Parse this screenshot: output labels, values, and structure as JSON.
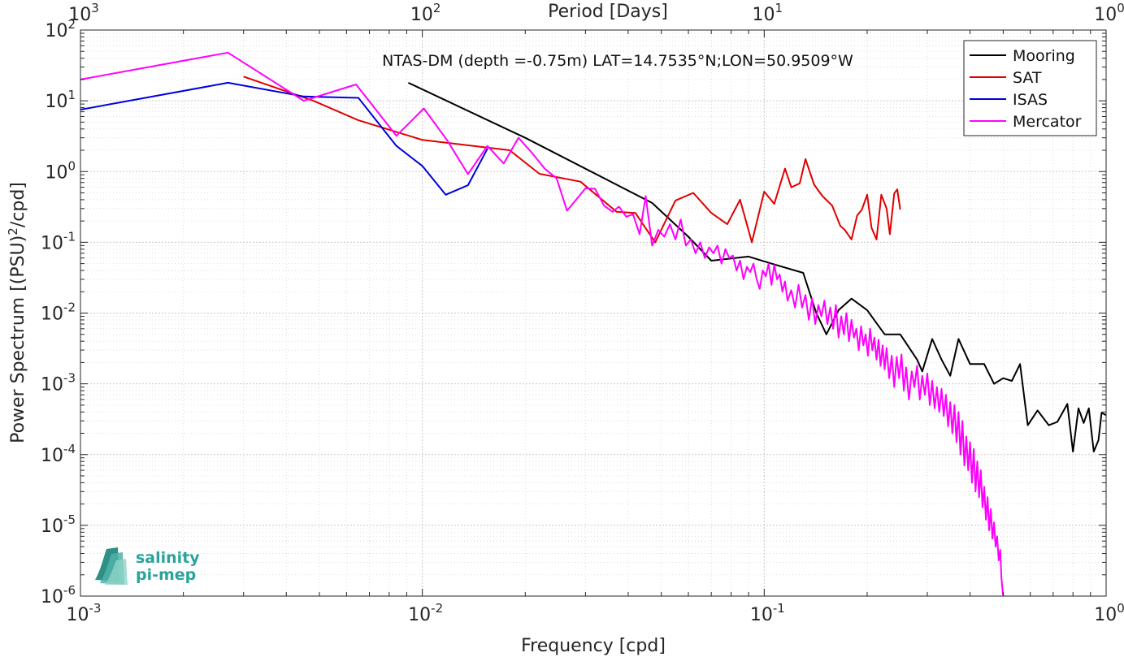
{
  "chart_data": {
    "type": "line",
    "title": "NTAS-DM (depth =-0.75m) LAT=14.7535°N;LON=50.9509°W",
    "xlabel": "Frequency [cpd]",
    "ylabel": "Power Spectrum [(PSU)^2/cpd]",
    "ylabel_parts": {
      "main": "Power Spectrum [(PSU)",
      "sup": "2",
      "tail": "/cpd]"
    },
    "top_xlabel": "Period [Days]",
    "x_scale": "log",
    "y_scale": "log",
    "xlim": [
      0.001,
      1
    ],
    "ylim": [
      1e-06,
      100
    ],
    "grid": true,
    "minor_grid": true,
    "legend_position": "top-right",
    "x_ticks": [
      {
        "value": 0.001,
        "base": "10",
        "exp": "-3"
      },
      {
        "value": 0.01,
        "base": "10",
        "exp": "-2"
      },
      {
        "value": 0.1,
        "base": "10",
        "exp": "-1"
      },
      {
        "value": 1,
        "base": "10",
        "exp": "0"
      }
    ],
    "top_ticks": [
      {
        "value": 0.001,
        "base": "10",
        "exp": "3"
      },
      {
        "value": 0.01,
        "base": "10",
        "exp": "2"
      },
      {
        "value": 0.1,
        "base": "10",
        "exp": "1"
      },
      {
        "value": 1,
        "base": "10",
        "exp": "0"
      }
    ],
    "y_ticks": [
      {
        "value": 1e-06,
        "base": "10",
        "exp": "-6"
      },
      {
        "value": 1e-05,
        "base": "10",
        "exp": "-5"
      },
      {
        "value": 0.0001,
        "base": "10",
        "exp": "-4"
      },
      {
        "value": 0.001,
        "base": "10",
        "exp": "-3"
      },
      {
        "value": 0.01,
        "base": "10",
        "exp": "-2"
      },
      {
        "value": 0.1,
        "base": "10",
        "exp": "-1"
      },
      {
        "value": 1,
        "base": "10",
        "exp": "0"
      },
      {
        "value": 10,
        "base": "10",
        "exp": "1"
      },
      {
        "value": 100,
        "base": "10",
        "exp": "2"
      }
    ],
    "series": [
      {
        "name": "Mooring",
        "color": "#000000",
        "points": [
          [
            0.0091,
            18
          ],
          [
            0.02,
            3.0
          ],
          [
            0.047,
            0.36
          ],
          [
            0.06,
            0.12
          ],
          [
            0.07,
            0.055
          ],
          [
            0.09,
            0.063
          ],
          [
            0.105,
            0.05
          ],
          [
            0.13,
            0.037
          ],
          [
            0.142,
            0.01
          ],
          [
            0.152,
            0.005
          ],
          [
            0.165,
            0.011
          ],
          [
            0.18,
            0.016
          ],
          [
            0.2,
            0.011
          ],
          [
            0.225,
            0.005
          ],
          [
            0.25,
            0.005
          ],
          [
            0.28,
            0.0022
          ],
          [
            0.29,
            0.0015
          ],
          [
            0.31,
            0.0043
          ],
          [
            0.33,
            0.0022
          ],
          [
            0.35,
            0.0013
          ],
          [
            0.37,
            0.0043
          ],
          [
            0.4,
            0.0019
          ],
          [
            0.44,
            0.0019
          ],
          [
            0.47,
            0.001
          ],
          [
            0.5,
            0.0012
          ],
          [
            0.53,
            0.0011
          ],
          [
            0.56,
            0.0019
          ],
          [
            0.59,
            0.00026
          ],
          [
            0.63,
            0.00042
          ],
          [
            0.68,
            0.00026
          ],
          [
            0.72,
            0.00029
          ],
          [
            0.77,
            0.00052
          ],
          [
            0.8,
            0.00011
          ],
          [
            0.83,
            0.00045
          ],
          [
            0.86,
            0.00028
          ],
          [
            0.89,
            0.00045
          ],
          [
            0.92,
            0.00011
          ],
          [
            0.95,
            0.00016
          ],
          [
            0.97,
            0.00039
          ],
          [
            1.0,
            0.00036
          ]
        ]
      },
      {
        "name": "SAT",
        "color": "#e00000",
        "points": [
          [
            0.003,
            22
          ],
          [
            0.0048,
            10
          ],
          [
            0.0065,
            5.3
          ],
          [
            0.01,
            2.8
          ],
          [
            0.018,
            2.0
          ],
          [
            0.022,
            0.93
          ],
          [
            0.029,
            0.72
          ],
          [
            0.037,
            0.27
          ],
          [
            0.042,
            0.26
          ],
          [
            0.048,
            0.1
          ],
          [
            0.055,
            0.39
          ],
          [
            0.062,
            0.5
          ],
          [
            0.07,
            0.26
          ],
          [
            0.078,
            0.18
          ],
          [
            0.085,
            0.4
          ],
          [
            0.092,
            0.1
          ],
          [
            0.1,
            0.52
          ],
          [
            0.107,
            0.35
          ],
          [
            0.115,
            1.1
          ],
          [
            0.12,
            0.6
          ],
          [
            0.127,
            0.68
          ],
          [
            0.132,
            1.5
          ],
          [
            0.14,
            0.65
          ],
          [
            0.148,
            0.45
          ],
          [
            0.158,
            0.33
          ],
          [
            0.167,
            0.17
          ],
          [
            0.172,
            0.15
          ],
          [
            0.18,
            0.11
          ],
          [
            0.187,
            0.24
          ],
          [
            0.193,
            0.29
          ],
          [
            0.2,
            0.47
          ],
          [
            0.206,
            0.16
          ],
          [
            0.213,
            0.11
          ],
          [
            0.22,
            0.47
          ],
          [
            0.228,
            0.3
          ],
          [
            0.233,
            0.13
          ],
          [
            0.24,
            0.49
          ],
          [
            0.245,
            0.56
          ],
          [
            0.25,
            0.29
          ]
        ]
      },
      {
        "name": "ISAS",
        "color": "#0000e0",
        "points": [
          [
            0.001,
            7.5
          ],
          [
            0.0027,
            18
          ],
          [
            0.0045,
            11.5
          ],
          [
            0.0065,
            11
          ],
          [
            0.0084,
            2.3
          ],
          [
            0.01,
            1.2
          ],
          [
            0.0117,
            0.47
          ],
          [
            0.0136,
            0.64
          ],
          [
            0.0155,
            2.1
          ]
        ]
      },
      {
        "name": "Mercator",
        "color": "#ff00ff",
        "points": [
          [
            0.001,
            20
          ],
          [
            0.0027,
            48
          ],
          [
            0.0045,
            10
          ],
          [
            0.0064,
            17
          ],
          [
            0.0084,
            3.2
          ],
          [
            0.0101,
            7.8
          ],
          [
            0.0118,
            2.8
          ],
          [
            0.0136,
            0.92
          ],
          [
            0.0155,
            2.3
          ],
          [
            0.0173,
            1.3
          ],
          [
            0.0191,
            3.0
          ],
          [
            0.021,
            1.8
          ],
          [
            0.0228,
            1.1
          ],
          [
            0.0247,
            0.8
          ],
          [
            0.0265,
            0.28
          ],
          [
            0.0284,
            0.42
          ],
          [
            0.03,
            0.58
          ],
          [
            0.032,
            0.57
          ],
          [
            0.034,
            0.33
          ],
          [
            0.036,
            0.27
          ],
          [
            0.0376,
            0.32
          ],
          [
            0.0395,
            0.23
          ],
          [
            0.0413,
            0.25
          ],
          [
            0.0432,
            0.13
          ],
          [
            0.045,
            0.45
          ],
          [
            0.047,
            0.09
          ],
          [
            0.049,
            0.15
          ],
          [
            0.051,
            0.12
          ],
          [
            0.053,
            0.18
          ],
          [
            0.055,
            0.11
          ],
          [
            0.057,
            0.21
          ],
          [
            0.059,
            0.09
          ],
          [
            0.061,
            0.11
          ],
          [
            0.063,
            0.07
          ],
          [
            0.065,
            0.1
          ],
          [
            0.067,
            0.06
          ],
          [
            0.069,
            0.085
          ],
          [
            0.071,
            0.07
          ],
          [
            0.073,
            0.09
          ],
          [
            0.075,
            0.05
          ],
          [
            0.077,
            0.08
          ],
          [
            0.079,
            0.06
          ],
          [
            0.081,
            0.065
          ],
          [
            0.083,
            0.04
          ],
          [
            0.085,
            0.055
          ],
          [
            0.087,
            0.03
          ],
          [
            0.089,
            0.045
          ],
          [
            0.091,
            0.038
          ],
          [
            0.093,
            0.05
          ],
          [
            0.095,
            0.03
          ],
          [
            0.097,
            0.022
          ],
          [
            0.099,
            0.04
          ],
          [
            0.101,
            0.033
          ],
          [
            0.103,
            0.05
          ],
          [
            0.105,
            0.025
          ],
          [
            0.107,
            0.048
          ],
          [
            0.109,
            0.03
          ],
          [
            0.111,
            0.035
          ],
          [
            0.113,
            0.02
          ],
          [
            0.115,
            0.028
          ],
          [
            0.117,
            0.015
          ],
          [
            0.12,
            0.021
          ],
          [
            0.123,
            0.012
          ],
          [
            0.126,
            0.025
          ],
          [
            0.129,
            0.012
          ],
          [
            0.132,
            0.018
          ],
          [
            0.135,
            0.008
          ],
          [
            0.138,
            0.016
          ],
          [
            0.141,
            0.007
          ],
          [
            0.144,
            0.013
          ],
          [
            0.147,
            0.009
          ],
          [
            0.15,
            0.015
          ],
          [
            0.153,
            0.007
          ],
          [
            0.156,
            0.012
          ],
          [
            0.159,
            0.006
          ],
          [
            0.162,
            0.013
          ],
          [
            0.165,
            0.0045
          ],
          [
            0.168,
            0.009
          ],
          [
            0.171,
            0.005
          ],
          [
            0.174,
            0.01
          ],
          [
            0.177,
            0.004
          ],
          [
            0.18,
            0.008
          ],
          [
            0.183,
            0.0045
          ],
          [
            0.186,
            0.006
          ],
          [
            0.189,
            0.003
          ],
          [
            0.192,
            0.0065
          ],
          [
            0.195,
            0.0035
          ],
          [
            0.198,
            0.005
          ],
          [
            0.201,
            0.0025
          ],
          [
            0.204,
            0.006
          ],
          [
            0.207,
            0.003
          ],
          [
            0.21,
            0.0045
          ],
          [
            0.213,
            0.0022
          ],
          [
            0.216,
            0.0042
          ],
          [
            0.219,
            0.0018
          ],
          [
            0.222,
            0.0035
          ],
          [
            0.225,
            0.0016
          ],
          [
            0.228,
            0.0032
          ],
          [
            0.232,
            0.0012
          ],
          [
            0.236,
            0.0025
          ],
          [
            0.24,
            0.0009
          ],
          [
            0.244,
            0.0024
          ],
          [
            0.248,
            0.0012
          ],
          [
            0.252,
            0.0026
          ],
          [
            0.256,
            0.0008
          ],
          [
            0.26,
            0.0017
          ],
          [
            0.265,
            0.0006
          ],
          [
            0.27,
            0.0015
          ],
          [
            0.275,
            0.0009
          ],
          [
            0.28,
            0.0018
          ],
          [
            0.285,
            0.0006
          ],
          [
            0.29,
            0.0013
          ],
          [
            0.295,
            0.0007
          ],
          [
            0.3,
            0.0014
          ],
          [
            0.305,
            0.0005
          ],
          [
            0.31,
            0.0011
          ],
          [
            0.315,
            0.00045
          ],
          [
            0.32,
            0.0009
          ],
          [
            0.325,
            0.0004
          ],
          [
            0.33,
            0.00085
          ],
          [
            0.335,
            0.00035
          ],
          [
            0.34,
            0.0007
          ],
          [
            0.345,
            0.00025
          ],
          [
            0.35,
            0.00055
          ],
          [
            0.355,
            0.0002
          ],
          [
            0.36,
            0.0005
          ],
          [
            0.365,
            0.00015
          ],
          [
            0.37,
            0.0004
          ],
          [
            0.375,
            0.0001
          ],
          [
            0.38,
            0.0003
          ],
          [
            0.385,
            7e-05
          ],
          [
            0.39,
            0.00018
          ],
          [
            0.395,
            6e-05
          ],
          [
            0.4,
            0.00015
          ],
          [
            0.405,
            4e-05
          ],
          [
            0.41,
            0.00012
          ],
          [
            0.415,
            3e-05
          ],
          [
            0.42,
            8e-05
          ],
          [
            0.425,
            2.5e-05
          ],
          [
            0.43,
            6e-05
          ],
          [
            0.435,
            1.8e-05
          ],
          [
            0.44,
            3.5e-05
          ],
          [
            0.445,
            1.2e-05
          ],
          [
            0.45,
            2.5e-05
          ],
          [
            0.455,
            8.5e-06
          ],
          [
            0.46,
            1.7e-05
          ],
          [
            0.465,
            6.5e-06
          ],
          [
            0.47,
            1.1e-05
          ],
          [
            0.475,
            5e-06
          ],
          [
            0.48,
            7e-06
          ],
          [
            0.485,
            3.2e-06
          ],
          [
            0.49,
            4.5e-06
          ],
          [
            0.494,
            1.8e-06
          ],
          [
            0.498,
            1.2e-06
          ],
          [
            0.5,
            1e-06
          ]
        ]
      }
    ]
  },
  "logo": {
    "line1": "salinity",
    "line2": "pi-mep"
  }
}
